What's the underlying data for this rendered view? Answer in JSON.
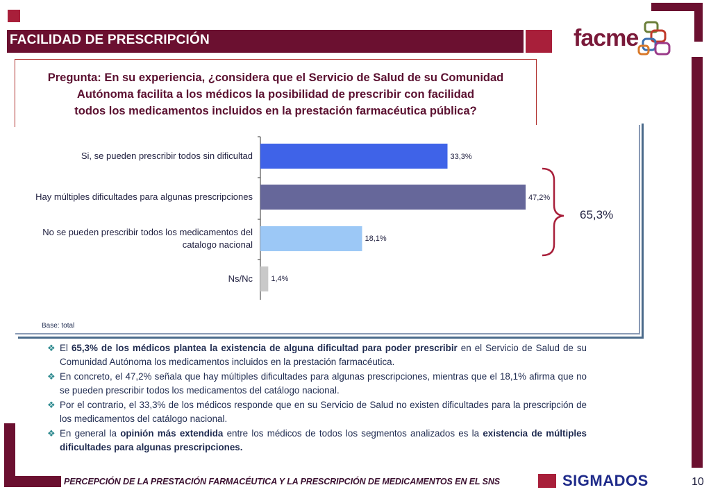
{
  "header": {
    "title": "FACILIDAD DE PRESCRIPCIÓN",
    "logo_text": "facme"
  },
  "question": {
    "line1": "Pregunta: En su experiencia, ¿considera que el Servicio de Salud de su Comunidad",
    "line2": "Autónoma facilita a los médicos la posibilidad de prescribir con facilidad",
    "line3": "todos los medicamentos incluidos en la prestación farmacéutica pública?"
  },
  "chart_data": {
    "type": "bar",
    "orientation": "horizontal",
    "categories": [
      "Si, se pueden prescribir todos sin dificultad",
      "Hay múltiples dificultades para algunas prescripciones",
      "No se pueden prescribir todos los medicamentos del catalogo nacional",
      "Ns/Nc"
    ],
    "category_lines": [
      [
        "Si, se pueden prescribir todos sin dificultad"
      ],
      [
        "Hay múltiples dificultades para algunas prescripciones"
      ],
      [
        "No se pueden prescribir todos los medicamentos del",
        "catalogo nacional"
      ],
      [
        "Ns/Nc"
      ]
    ],
    "values": [
      33.3,
      47.2,
      18.1,
      1.4
    ],
    "value_labels": [
      "33,3%",
      "47,2%",
      "18,1%",
      "1,4%"
    ],
    "colors": [
      "#3f63e8",
      "#66679a",
      "#9cc8f6",
      "#c9c9c9"
    ],
    "xlim": [
      0,
      50
    ],
    "bracket_label": "65,3%",
    "base_note": "Base: total"
  },
  "bullets": [
    {
      "parts": [
        {
          "t": "El ",
          "b": false
        },
        {
          "t": "65,3% de los médicos plantea la existencia de alguna dificultad para poder prescribir",
          "b": true
        },
        {
          "t": " en el Servicio de Salud de su Comunidad Autónoma los medicamentos incluidos en la prestación farmacéutica.",
          "b": false
        }
      ]
    },
    {
      "parts": [
        {
          "t": "En concreto, el 47,2% señala que hay múltiples dificultades para algunas prescripciones, mientras que el 18,1% afirma que no se pueden prescribir todos los medicamentos del catálogo nacional.",
          "b": false
        }
      ]
    },
    {
      "parts": [
        {
          "t": "Por el contrario, el 33,3% de los médicos responde que en su Servicio de Salud no existen dificultades para la prescripción de los medicamentos del catálogo nacional.",
          "b": false
        }
      ]
    },
    {
      "parts": [
        {
          "t": "En general la ",
          "b": false
        },
        {
          "t": "opinión más extendida",
          "b": true
        },
        {
          "t": " entre los médicos de todos los segmentos analizados es la ",
          "b": false
        },
        {
          "t": "existencia de múltiples dificultades para algunas prescripciones.",
          "b": true
        }
      ]
    }
  ],
  "footer": {
    "text": "PERCEPCIÓN DE LA PRESTACIÓN FARMACÉUTICA Y LA PRESCRIPCIÓN DE MEDICAMENTOS EN EL SNS",
    "brand": "SIGMADOS",
    "page_number": "10"
  },
  "colors": {
    "maroon": "#6b1030",
    "crimson": "#b0243a",
    "accent_teal": "#2e8a8f"
  }
}
